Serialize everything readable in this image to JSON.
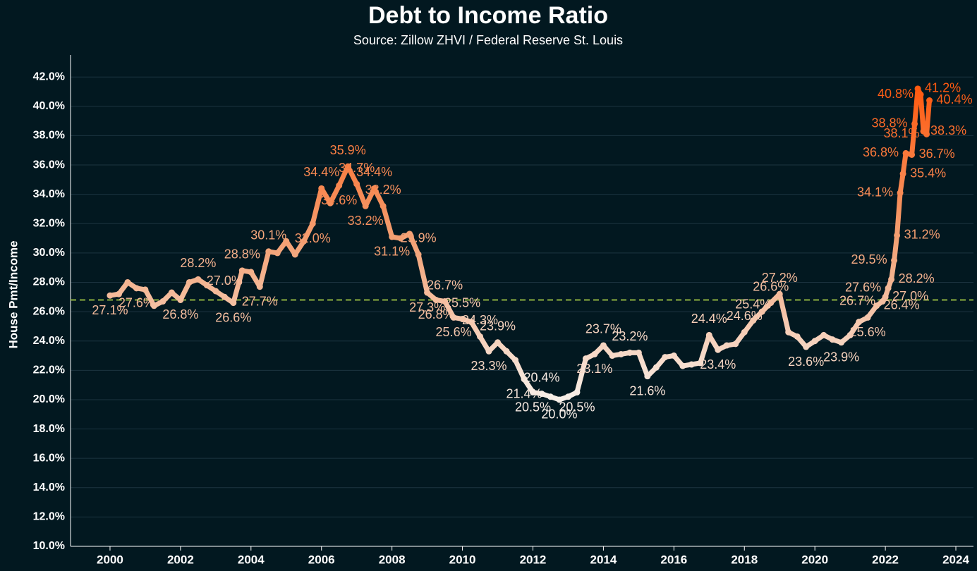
{
  "chart_data": {
    "type": "line",
    "title": "Debt to Income Ratio",
    "subtitle": "Source: Zillow ZHVI / Federal Reserve St. Louis",
    "y_label": "House Pmt/Income",
    "x": [
      2000,
      2000.25,
      2000.5,
      2000.75,
      2001,
      2001.25,
      2001.5,
      2001.75,
      2002,
      2002.25,
      2002.5,
      2002.75,
      2003,
      2003.25,
      2003.5,
      2003.75,
      2004,
      2004.25,
      2004.5,
      2004.75,
      2005,
      2005.25,
      2005.5,
      2005.75,
      2006,
      2006.25,
      2006.5,
      2006.75,
      2007,
      2007.25,
      2007.5,
      2007.75,
      2008,
      2008.25,
      2008.5,
      2008.75,
      2009,
      2009.25,
      2009.5,
      2009.75,
      2010,
      2010.25,
      2010.5,
      2010.75,
      2011,
      2011.25,
      2011.5,
      2011.75,
      2012,
      2012.25,
      2012.5,
      2012.75,
      2013,
      2013.25,
      2013.5,
      2013.75,
      2014,
      2014.25,
      2014.5,
      2014.75,
      2015,
      2015.25,
      2015.5,
      2015.75,
      2016,
      2016.25,
      2016.5,
      2016.75,
      2017,
      2017.25,
      2017.5,
      2017.75,
      2018,
      2018.25,
      2018.5,
      2018.75,
      2019,
      2019.25,
      2019.5,
      2019.75,
      2020,
      2020.25,
      2020.5,
      2020.75,
      2021,
      2021.25,
      2021.5,
      2021.75,
      2021.92,
      2022,
      2022.08,
      2022.17,
      2022.25,
      2022.33,
      2022.42,
      2022.5,
      2022.58,
      2022.75,
      2022.83,
      2022.92,
      2023,
      2023.08,
      2023.17,
      2023.25
    ],
    "series": [
      {
        "name": "House Pmt/Income",
        "values": [
          27.1,
          27.2,
          28.0,
          27.6,
          27.5,
          26.4,
          26.7,
          27.3,
          26.8,
          28.0,
          28.2,
          27.8,
          27.4,
          27.0,
          26.6,
          28.8,
          28.7,
          27.7,
          30.1,
          30.0,
          30.8,
          29.9,
          30.8,
          32.0,
          34.4,
          33.4,
          34.6,
          35.9,
          34.7,
          33.2,
          34.4,
          33.2,
          31.1,
          31.0,
          31.3,
          29.9,
          27.3,
          26.8,
          26.7,
          25.6,
          25.5,
          25.3,
          24.3,
          23.3,
          23.9,
          23.3,
          22.7,
          21.4,
          20.5,
          20.4,
          20.2,
          20.0,
          20.2,
          20.5,
          22.8,
          23.1,
          23.7,
          23.0,
          23.1,
          23.2,
          23.2,
          21.6,
          22.2,
          22.9,
          23.0,
          22.3,
          22.4,
          22.5,
          24.4,
          23.4,
          23.7,
          23.8,
          24.6,
          25.4,
          26.0,
          26.6,
          27.2,
          24.6,
          24.3,
          23.6,
          24.0,
          24.4,
          24.1,
          23.9,
          24.4,
          25.3,
          25.6,
          26.4,
          26.7,
          27.0,
          27.6,
          28.2,
          29.5,
          31.2,
          34.1,
          35.4,
          36.8,
          36.7,
          38.8,
          41.2,
          40.8,
          38.3,
          38.1,
          40.4
        ],
        "value_labels": [
          "27.1%",
          null,
          null,
          "27.6%",
          null,
          null,
          null,
          null,
          "26.8%",
          null,
          "28.2%",
          null,
          null,
          "27.0%",
          "26.6%",
          "28.8%",
          null,
          "27.7%",
          "30.1%",
          null,
          null,
          null,
          null,
          "32.0%",
          "34.4%",
          null,
          "34.6%",
          "35.9%",
          "34.7%",
          "33.2%",
          "34.4%",
          "33.2%",
          "31.1%",
          null,
          null,
          "29.9%",
          "27.3%",
          "26.8%",
          "26.7%",
          "25.6%",
          "25.5%",
          null,
          "24.3%",
          "23.3%",
          "23.9%",
          null,
          null,
          "21.4%",
          "20.5%",
          "20.4%",
          null,
          "20.0%",
          null,
          "20.5%",
          null,
          "23.1%",
          "23.7%",
          null,
          null,
          "23.2%",
          null,
          "21.6%",
          null,
          null,
          null,
          null,
          null,
          null,
          "24.4%",
          "23.4%",
          null,
          null,
          "24.6%",
          "25.4%",
          null,
          "26.6%",
          "27.2%",
          null,
          null,
          "23.6%",
          null,
          null,
          null,
          "23.9%",
          null,
          null,
          "25.6%",
          "26.4%",
          "26.7%",
          "27.0%",
          "27.6%",
          "28.2%",
          "29.5%",
          "31.2%",
          "34.1%",
          "35.4%",
          "36.8%",
          "36.7%",
          "38.8%",
          "41.2%",
          "40.8%",
          "38.3%",
          "38.1%",
          "40.4%"
        ]
      }
    ],
    "colors": [
      "#f8efe8",
      "#f3a276",
      "#ff5a10"
    ],
    "reference_line": 26.8,
    "reference_color": "#8fb040",
    "xlim": [
      1998.88,
      2024.5
    ],
    "xticks": [
      2000,
      2002,
      2004,
      2006,
      2008,
      2010,
      2012,
      2014,
      2016,
      2018,
      2020,
      2022,
      2024
    ],
    "ylim": [
      10,
      43.5
    ],
    "yticks": [
      {
        "value": 10,
        "label": "10.0%"
      },
      {
        "value": 12,
        "label": "12.0%"
      },
      {
        "value": 14,
        "label": "14.0%"
      },
      {
        "value": 16,
        "label": "16.0%"
      },
      {
        "value": 18,
        "label": "18.0%"
      },
      {
        "value": 20,
        "label": "20.0%"
      },
      {
        "value": 22,
        "label": "22.0%"
      },
      {
        "value": 24,
        "label": "24.0%"
      },
      {
        "value": 26,
        "label": "26.0%"
      },
      {
        "value": 28,
        "label": "28.0%"
      },
      {
        "value": 30,
        "label": "30.0%"
      },
      {
        "value": 32,
        "label": "32.0%"
      },
      {
        "value": 34,
        "label": "34.0%"
      },
      {
        "value": 36,
        "label": "36.0%"
      },
      {
        "value": 38,
        "label": "38.0%"
      },
      {
        "value": 40,
        "label": "40.0%"
      },
      {
        "value": 42,
        "label": "42.0%"
      }
    ],
    "grid": true
  }
}
